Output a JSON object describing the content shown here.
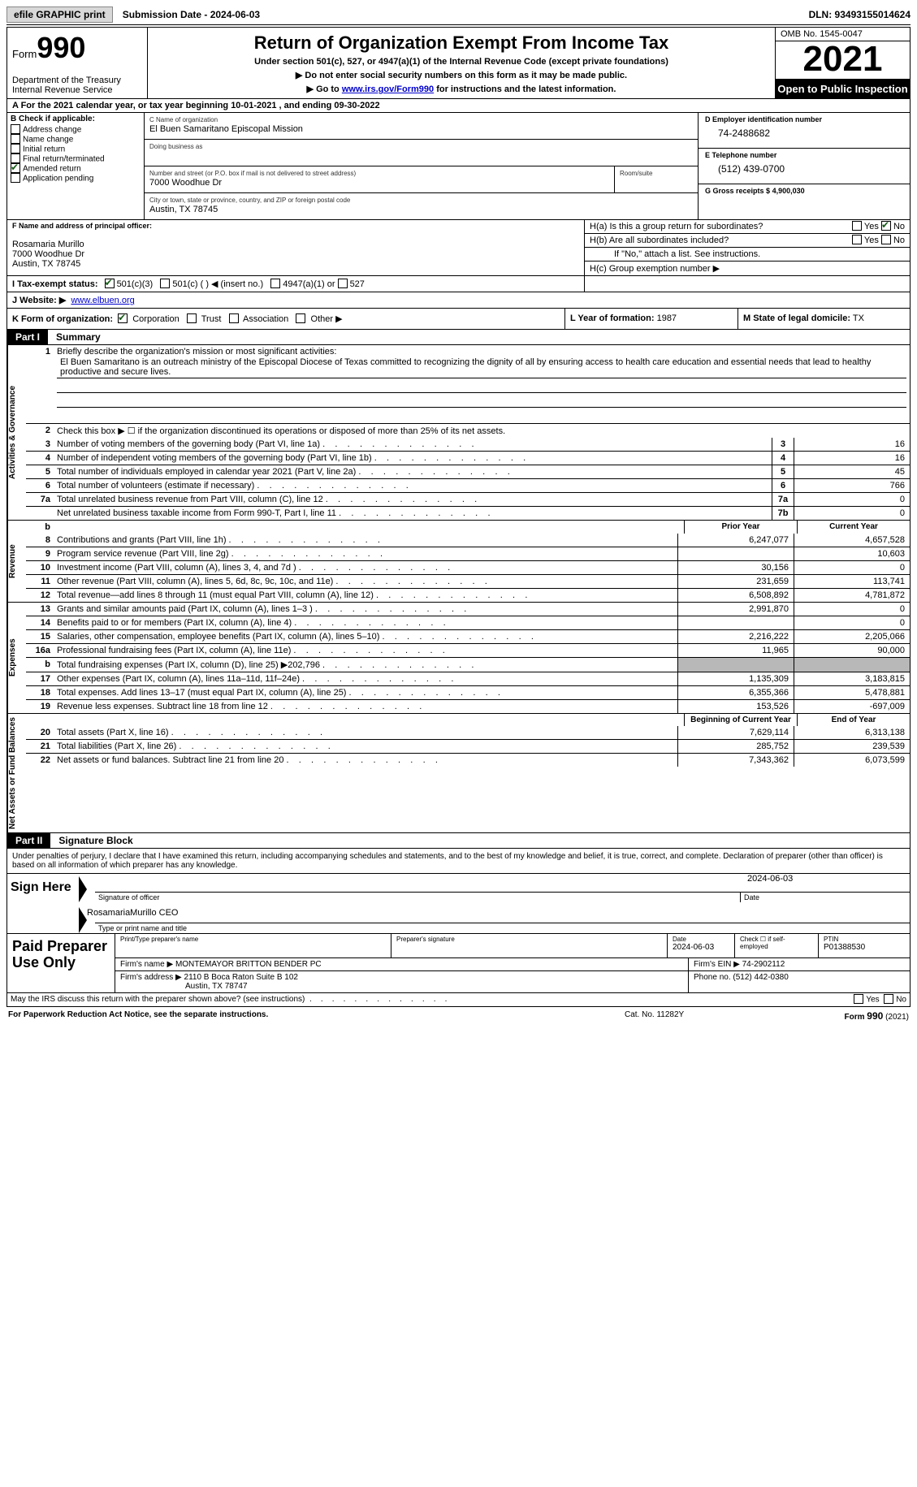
{
  "topbar": {
    "efile_btn": "efile GRAPHIC print",
    "submission": "Submission Date - 2024-06-03",
    "dln": "DLN: 93493155014624"
  },
  "header": {
    "form_word": "Form",
    "form_num": "990",
    "title": "Return of Organization Exempt From Income Tax",
    "subtitle": "Under section 501(c), 527, or 4947(a)(1) of the Internal Revenue Code (except private foundations)",
    "note1": "▶ Do not enter social security numbers on this form as it may be made public.",
    "note2_pre": "▶ Go to ",
    "note2_link": "www.irs.gov/Form990",
    "note2_post": " for instructions and the latest information.",
    "dept": "Department of the Treasury\nInternal Revenue Service",
    "omb": "OMB No. 1545-0047",
    "year": "2021",
    "inspection": "Open to Public Inspection"
  },
  "row_a": "A For the 2021 calendar year, or tax year beginning 10-01-2021   , and ending 09-30-2022",
  "colB": {
    "label": "B Check if applicable:",
    "items": [
      {
        "label": "Address change",
        "checked": false
      },
      {
        "label": "Name change",
        "checked": false
      },
      {
        "label": "Initial return",
        "checked": false
      },
      {
        "label": "Final return/terminated",
        "checked": false
      },
      {
        "label": "Amended return",
        "checked": true
      },
      {
        "label": "Application pending",
        "checked": false
      }
    ]
  },
  "colC": {
    "name_label": "C Name of organization",
    "name": "El Buen Samaritano Episcopal Mission",
    "dba_label": "Doing business as",
    "addr_label": "Number and street (or P.O. box if mail is not delivered to street address)",
    "room_label": "Room/suite",
    "addr": "7000 Woodhue Dr",
    "city_label": "City or town, state or province, country, and ZIP or foreign postal code",
    "city": "Austin, TX  78745"
  },
  "colDE": {
    "d_label": "D Employer identification number",
    "d_val": "74-2488682",
    "e_label": "E Telephone number",
    "e_val": "(512) 439-0700",
    "g_label": "G Gross receipts $",
    "g_val": "4,900,030"
  },
  "colF": {
    "label": "F Name and address of principal officer:",
    "name": "Rosamaria Murillo",
    "addr1": "7000 Woodhue Dr",
    "addr2": "Austin, TX  78745"
  },
  "h": {
    "ha": "H(a)  Is this a group return for subordinates?",
    "hb": "H(b)  Are all subordinates included?",
    "hb_note": "If \"No,\" attach a list. See instructions.",
    "hc": "H(c)  Group exemption number ▶"
  },
  "i": {
    "label": "I  Tax-exempt status:",
    "c3": "501(c)(3)",
    "c": "501(c) (  ) ◀ (insert no.)",
    "a1": "4947(a)(1) or",
    "s527": "527"
  },
  "j": {
    "label": "J  Website: ▶",
    "val": "www.elbuen.org"
  },
  "k": {
    "label": "K Form of organization:",
    "corp": "Corporation",
    "trust": "Trust",
    "assoc": "Association",
    "other": "Other ▶"
  },
  "l": {
    "label": "L Year of formation:",
    "val": "1987"
  },
  "m": {
    "label": "M State of legal domicile:",
    "val": "TX"
  },
  "part1": {
    "tag": "Part I",
    "title": "Summary"
  },
  "summary": {
    "side1": "Activities & Governance",
    "side2": "Revenue",
    "side3": "Expenses",
    "side4": "Net Assets or Fund Balances",
    "line1_label": "Briefly describe the organization's mission or most significant activities:",
    "line1_mission": "El Buen Samaritano is an outreach ministry of the Episcopal Diocese of Texas committed to recognizing the dignity of all by ensuring access to health care education and essential needs that lead to healthy productive and secure lives.",
    "line2": "Check this box ▶ ☐ if the organization discontinued its operations or disposed of more than 25% of its net assets.",
    "rows_single": [
      {
        "n": "3",
        "desc": "Number of voting members of the governing body (Part VI, line 1a)",
        "box": "3",
        "val": "16"
      },
      {
        "n": "4",
        "desc": "Number of independent voting members of the governing body (Part VI, line 1b)",
        "box": "4",
        "val": "16"
      },
      {
        "n": "5",
        "desc": "Total number of individuals employed in calendar year 2021 (Part V, line 2a)",
        "box": "5",
        "val": "45"
      },
      {
        "n": "6",
        "desc": "Total number of volunteers (estimate if necessary)",
        "box": "6",
        "val": "766"
      },
      {
        "n": "7a",
        "desc": "Total unrelated business revenue from Part VIII, column (C), line 12",
        "box": "7a",
        "val": "0"
      },
      {
        "n": "",
        "desc": "Net unrelated business taxable income from Form 990-T, Part I, line 11",
        "box": "7b",
        "val": "0"
      }
    ],
    "col_prior": "Prior Year",
    "col_current": "Current Year",
    "revenue": [
      {
        "n": "8",
        "desc": "Contributions and grants (Part VIII, line 1h)",
        "p": "6,247,077",
        "c": "4,657,528"
      },
      {
        "n": "9",
        "desc": "Program service revenue (Part VIII, line 2g)",
        "p": "",
        "c": "10,603"
      },
      {
        "n": "10",
        "desc": "Investment income (Part VIII, column (A), lines 3, 4, and 7d )",
        "p": "30,156",
        "c": "0"
      },
      {
        "n": "11",
        "desc": "Other revenue (Part VIII, column (A), lines 5, 6d, 8c, 9c, 10c, and 11e)",
        "p": "231,659",
        "c": "113,741"
      },
      {
        "n": "12",
        "desc": "Total revenue—add lines 8 through 11 (must equal Part VIII, column (A), line 12)",
        "p": "6,508,892",
        "c": "4,781,872"
      }
    ],
    "expenses": [
      {
        "n": "13",
        "desc": "Grants and similar amounts paid (Part IX, column (A), lines 1–3 )",
        "p": "2,991,870",
        "c": "0"
      },
      {
        "n": "14",
        "desc": "Benefits paid to or for members (Part IX, column (A), line 4)",
        "p": "",
        "c": "0"
      },
      {
        "n": "15",
        "desc": "Salaries, other compensation, employee benefits (Part IX, column (A), lines 5–10)",
        "p": "2,216,222",
        "c": "2,205,066"
      },
      {
        "n": "16a",
        "desc": "Professional fundraising fees (Part IX, column (A), line 11e)",
        "p": "11,965",
        "c": "90,000"
      },
      {
        "n": "b",
        "desc": "Total fundraising expenses (Part IX, column (D), line 25) ▶202,796",
        "p": "SHADED",
        "c": "SHADED"
      },
      {
        "n": "17",
        "desc": "Other expenses (Part IX, column (A), lines 11a–11d, 11f–24e)",
        "p": "1,135,309",
        "c": "3,183,815"
      },
      {
        "n": "18",
        "desc": "Total expenses. Add lines 13–17 (must equal Part IX, column (A), line 25)",
        "p": "6,355,366",
        "c": "5,478,881"
      },
      {
        "n": "19",
        "desc": "Revenue less expenses. Subtract line 18 from line 12",
        "p": "153,526",
        "c": "-697,009"
      }
    ],
    "col_boy": "Beginning of Current Year",
    "col_eoy": "End of Year",
    "net": [
      {
        "n": "20",
        "desc": "Total assets (Part X, line 16)",
        "p": "7,629,114",
        "c": "6,313,138"
      },
      {
        "n": "21",
        "desc": "Total liabilities (Part X, line 26)",
        "p": "285,752",
        "c": "239,539"
      },
      {
        "n": "22",
        "desc": "Net assets or fund balances. Subtract line 21 from line 20",
        "p": "7,343,362",
        "c": "6,073,599"
      }
    ]
  },
  "part2": {
    "tag": "Part II",
    "title": "Signature Block"
  },
  "sig": {
    "perjury": "Under penalties of perjury, I declare that I have examined this return, including accompanying schedules and statements, and to the best of my knowledge and belief, it is true, correct, and complete. Declaration of preparer (other than officer) is based on all information of which preparer has any knowledge.",
    "sign_here": "Sign Here",
    "sig_officer": "Signature of officer",
    "sig_date_lbl": "Date",
    "sig_date": "2024-06-03",
    "name_title": "RosamariaMurillo CEO",
    "name_title_lbl": "Type or print name and title"
  },
  "preparer": {
    "label": "Paid Preparer Use Only",
    "r1": {
      "name_lbl": "Print/Type preparer's name",
      "sig_lbl": "Preparer's signature",
      "date_lbl": "Date",
      "date": "2024-06-03",
      "check_lbl": "Check ☐ if self-employed",
      "ptin_lbl": "PTIN",
      "ptin": "P01388530"
    },
    "r2": {
      "firm_lbl": "Firm's name   ▶",
      "firm": "MONTEMAYOR BRITTON BENDER PC",
      "ein_lbl": "Firm's EIN ▶",
      "ein": "74-2902112"
    },
    "r3": {
      "addr_lbl": "Firm's address ▶",
      "addr1": "2110 B Boca Raton Suite B 102",
      "addr2": "Austin, TX  78747",
      "phone_lbl": "Phone no.",
      "phone": "(512) 442-0380"
    }
  },
  "discuss": "May the IRS discuss this return with the preparer shown above? (see instructions)",
  "footer": {
    "l": "For Paperwork Reduction Act Notice, see the separate instructions.",
    "m": "Cat. No. 11282Y",
    "r": "Form 990 (2021)"
  }
}
